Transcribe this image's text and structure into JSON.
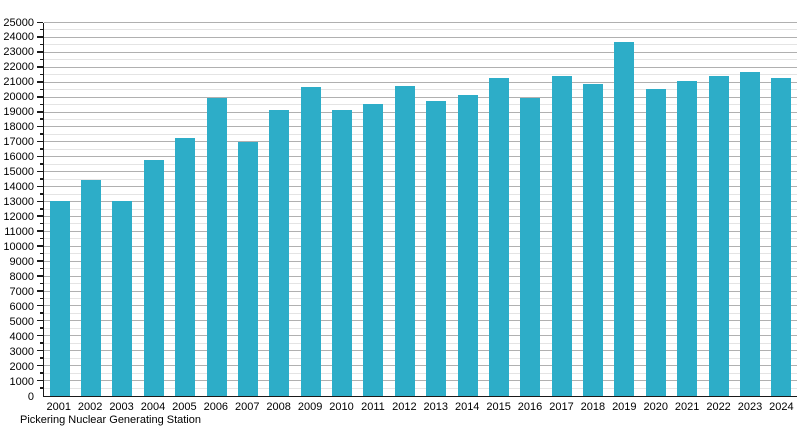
{
  "caption": "Pickering Nuclear Generating Station",
  "colors": {
    "bar": "#2dadc8",
    "grid_major": "#b0b0b0",
    "grid_minor": "#e4e4e4",
    "axis": "#1a1a1a",
    "text": "#000000"
  },
  "chart_data": {
    "type": "bar",
    "title": "Pickering Nuclear Generating Station",
    "categories": [
      "2001",
      "2002",
      "2003",
      "2004",
      "2005",
      "2006",
      "2007",
      "2008",
      "2009",
      "2010",
      "2011",
      "2012",
      "2013",
      "2014",
      "2015",
      "2016",
      "2017",
      "2018",
      "2019",
      "2020",
      "2021",
      "2022",
      "2023",
      "2024"
    ],
    "values": [
      13100,
      14450,
      13100,
      15800,
      17300,
      19950,
      17000,
      19200,
      20700,
      19200,
      19600,
      20800,
      19800,
      20150,
      21300,
      20000,
      21450,
      20900,
      23700,
      20600,
      21100,
      21450,
      21700,
      21300
    ],
    "xlabel": "",
    "ylabel": "",
    "ylim": [
      0,
      25000
    ],
    "y_major_step": 1000,
    "y_minor_step": 500,
    "grid": true,
    "legend": false
  }
}
